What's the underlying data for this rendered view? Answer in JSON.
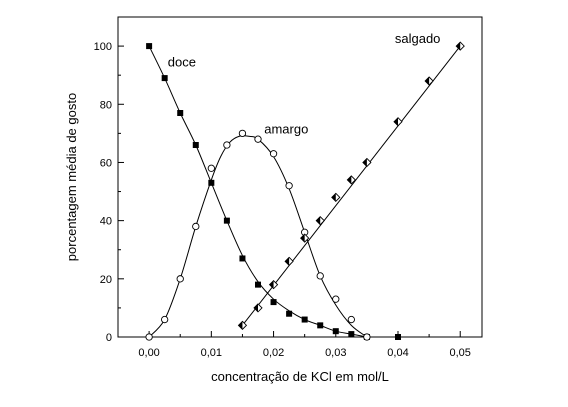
{
  "chart_data": {
    "type": "scatter",
    "title": "",
    "xlabel": "concentração de KCl em mol/L",
    "ylabel": "porcentagem média de gosto",
    "xlim": [
      -0.005,
      0.0535
    ],
    "ylim": [
      0,
      110
    ],
    "x_ticks": [
      0.0,
      0.01,
      0.02,
      0.03,
      0.04,
      0.05
    ],
    "x_tick_labels": [
      "0,00",
      "0,01",
      "0,02",
      "0,03",
      "0,04",
      "0,05"
    ],
    "y_ticks": [
      0,
      20,
      40,
      60,
      80,
      100
    ],
    "y_tick_labels": [
      "0",
      "20",
      "40",
      "60",
      "80",
      "100"
    ],
    "grid": false,
    "series": [
      {
        "name": "doce",
        "marker": "filled-square",
        "x": [
          0.0,
          0.0025,
          0.005,
          0.0075,
          0.01,
          0.0125,
          0.015,
          0.0175,
          0.02,
          0.0225,
          0.025,
          0.0275,
          0.03,
          0.0325,
          0.035,
          0.04
        ],
        "y": [
          100,
          89,
          77,
          66,
          53,
          40,
          27,
          18,
          12,
          8,
          6,
          4,
          2,
          1,
          0,
          0
        ],
        "curve_x": [
          0.0,
          0.0025,
          0.005,
          0.0075,
          0.01,
          0.0125,
          0.015,
          0.0175,
          0.02,
          0.0225,
          0.025,
          0.0275,
          0.03,
          0.0325,
          0.035
        ],
        "curve_y": [
          100,
          89,
          77,
          66,
          53,
          40,
          28,
          19,
          13,
          9,
          6,
          4,
          2,
          1,
          0
        ],
        "label_x": 0.003,
        "label_y": 93
      },
      {
        "name": "amargo",
        "marker": "open-circle",
        "x": [
          0.0,
          0.0025,
          0.005,
          0.0075,
          0.01,
          0.0125,
          0.015,
          0.0175,
          0.02,
          0.0225,
          0.025,
          0.0275,
          0.03,
          0.0325,
          0.035
        ],
        "y": [
          0,
          6,
          20,
          38,
          58,
          66,
          70,
          68,
          63,
          52,
          36,
          21,
          13,
          6,
          0
        ],
        "curve_x": [
          0.0,
          0.0025,
          0.005,
          0.0075,
          0.01,
          0.0115,
          0.013,
          0.0145,
          0.016,
          0.0175,
          0.02,
          0.0225,
          0.025,
          0.0275,
          0.03,
          0.0325,
          0.035
        ],
        "curve_y": [
          0,
          6,
          20,
          38,
          54,
          62,
          67,
          69,
          69,
          68,
          62,
          51,
          36,
          21,
          11,
          4,
          0
        ],
        "label_x": 0.0185,
        "label_y": 70
      },
      {
        "name": "salgado",
        "marker": "half-filled-diamond",
        "x": [
          0.015,
          0.0175,
          0.02,
          0.0225,
          0.025,
          0.0275,
          0.03,
          0.0325,
          0.035,
          0.04,
          0.045,
          0.05
        ],
        "y": [
          4,
          10,
          18,
          26,
          34,
          40,
          48,
          54,
          60,
          74,
          88,
          100
        ],
        "curve_x": [
          0.015,
          0.05
        ],
        "curve_y": [
          4,
          100
        ],
        "label_x": 0.0395,
        "label_y": 101
      }
    ]
  }
}
